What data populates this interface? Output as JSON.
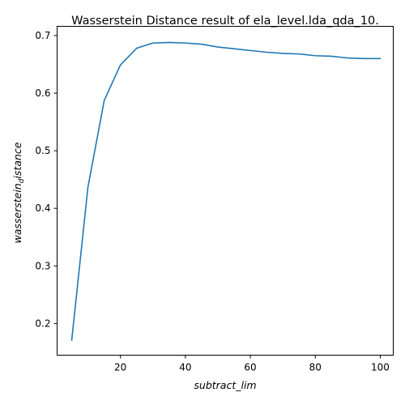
{
  "chart_data": {
    "type": "line",
    "title": "Wasserstein Distance result of ela_level.lda_qda_10.",
    "xlabel": "subtract_lim",
    "ylabel": "wasserstein_distance",
    "xlim": [
      0.5,
      104
    ],
    "ylim": [
      0.145,
      0.716
    ],
    "xticks": [
      20,
      40,
      60,
      80,
      100
    ],
    "yticks": [
      0.2,
      0.3,
      0.4,
      0.5,
      0.6,
      0.7
    ],
    "grid": false,
    "legend": "none",
    "colors": {
      "line": "#1f77b4"
    },
    "series": [
      {
        "x": [
          5,
          10,
          15,
          20,
          25,
          30,
          35,
          40,
          45,
          50,
          55,
          60,
          65,
          70,
          75,
          80,
          85,
          90,
          95,
          100
        ],
        "values": [
          0.171,
          0.437,
          0.587,
          0.649,
          0.678,
          0.687,
          0.688,
          0.687,
          0.685,
          0.68,
          0.677,
          0.674,
          0.671,
          0.669,
          0.668,
          0.665,
          0.664,
          0.661,
          0.66,
          0.66
        ]
      }
    ]
  }
}
